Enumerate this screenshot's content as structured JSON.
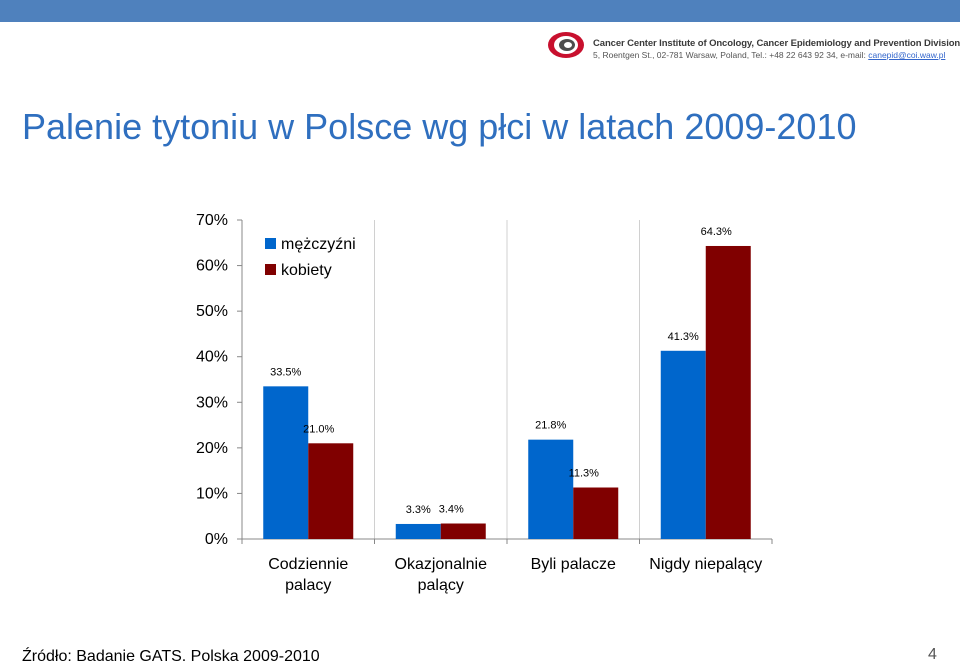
{
  "header": {
    "org_name": "Cancer Center Institute of Oncology, Cancer Epidemiology and Prevention Division",
    "org_address": "5, Roentgen St., 02-781 Warsaw, Poland, Tel.: +48 22 643 92 34, e-mail: ",
    "org_email": "canepid@coi.waw.pl"
  },
  "slide": {
    "title": "Palenie tytoniu w Polsce wg płci w latach 2009-2010",
    "source": "Źródło: Badanie GATS. Polska 2009-2010",
    "page_number": "4"
  },
  "colors": {
    "men": "#0066cc",
    "women": "#800000",
    "topbar": "#4f81bd",
    "title": "#2f6fbf"
  },
  "chart_data": {
    "type": "bar",
    "categories": [
      [
        "Codziennie",
        "palacy"
      ],
      [
        "Okazjonalnie",
        "palący"
      ],
      [
        "Byli palacze"
      ],
      [
        "Nigdy niepalący"
      ]
    ],
    "series": [
      {
        "name": "mężczyźni",
        "values": [
          33.5,
          3.3,
          21.8,
          41.3
        ],
        "labels": [
          "33.5%",
          "3.3%",
          "21.8%",
          "41.3%"
        ]
      },
      {
        "name": "kobiety",
        "values": [
          21.0,
          3.4,
          11.3,
          64.3
        ],
        "labels": [
          "21.0%",
          "3.4%",
          "11.3%",
          "64.3%"
        ]
      }
    ],
    "ylim": [
      0,
      70
    ],
    "yticks": [
      "0%",
      "10%",
      "20%",
      "30%",
      "40%",
      "50%",
      "60%",
      "70%"
    ],
    "legend_position": "top-left"
  }
}
